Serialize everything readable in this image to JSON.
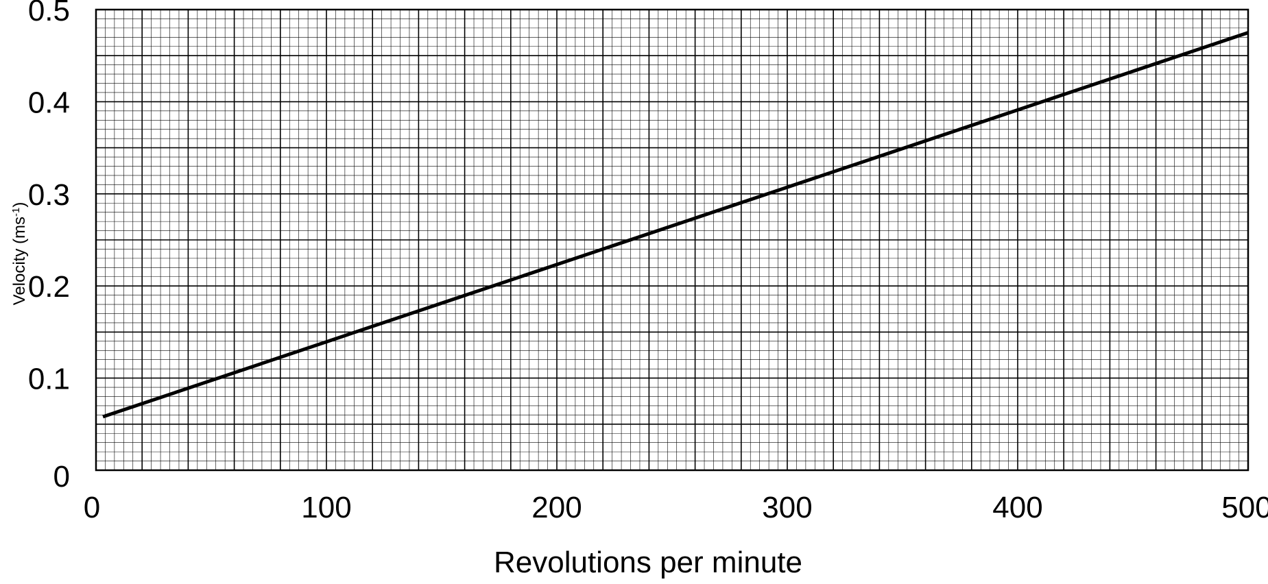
{
  "chart_data": {
    "type": "line",
    "title": "",
    "xlabel": "Revolutions per minute",
    "ylabel": {
      "base": "Velocity (ms",
      "superscript": "-1",
      "suffix": ")"
    },
    "xlim": [
      0,
      500
    ],
    "ylim": [
      0,
      0.5
    ],
    "x_ticks": [
      "0",
      "100",
      "200",
      "300",
      "400",
      "500"
    ],
    "y_ticks": [
      "0",
      "0.1",
      "0.2",
      "0.3",
      "0.4",
      "0.5"
    ],
    "grid": "graph paper: major lines every 20 rpm and 0.05 ms-1, minor lines every 4 rpm and 0.01 ms-1",
    "series": [
      {
        "x": [
          3,
          500
        ],
        "y": [
          0.058,
          0.475
        ],
        "color": "#000000"
      }
    ]
  }
}
